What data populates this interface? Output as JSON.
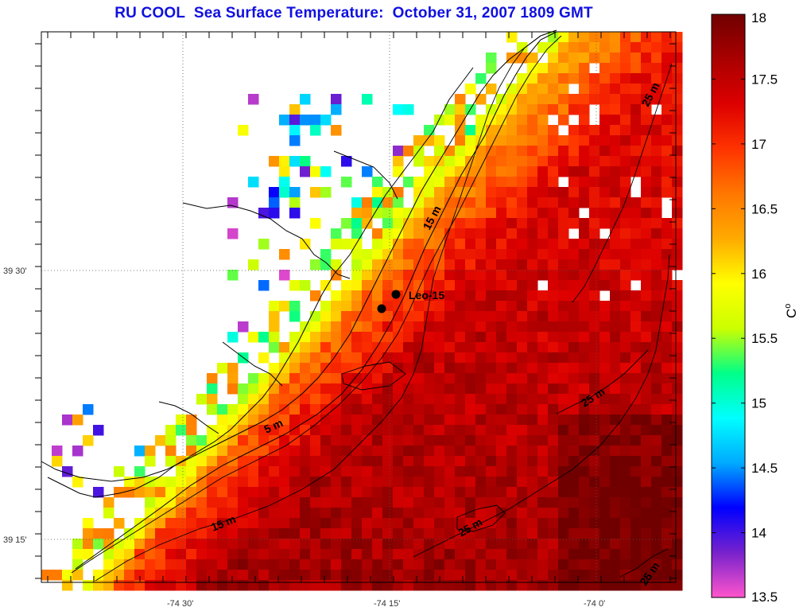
{
  "title": "RU COOL  Sea Surface Temperature:  October 31, 2007 1809 GMT",
  "colorbar": {
    "unit_label": "C",
    "unit_superscript": "o",
    "min": 13.5,
    "max": 18,
    "tick_labels": [
      "18",
      "17.5",
      "17",
      "16.5",
      "16",
      "15.5",
      "15",
      "14.5",
      "14",
      "13.5"
    ],
    "tick_values": [
      18,
      17.5,
      17,
      16.5,
      16,
      15.5,
      15,
      14.5,
      14,
      13.5
    ],
    "colors": [
      "#ff55cc",
      "#7722cc",
      "#0000ff",
      "#00aaff",
      "#00ffff",
      "#00ff88",
      "#ccff00",
      "#ffff00",
      "#ffaa00",
      "#ff7700",
      "#ff3300",
      "#dd0000",
      "#aa0000",
      "#700000"
    ]
  },
  "axes": {
    "x_tick_labels": [
      "-74 30'",
      "-74 15'",
      "-74 0'"
    ],
    "y_tick_labels": [
      "39 30'",
      "39 15'"
    ]
  },
  "contour_labels": [
    "15 m",
    "25 m",
    "25 m",
    "5 m",
    "15 m",
    "25 m",
    "25 m"
  ],
  "station": {
    "name": "Leo-15"
  }
}
